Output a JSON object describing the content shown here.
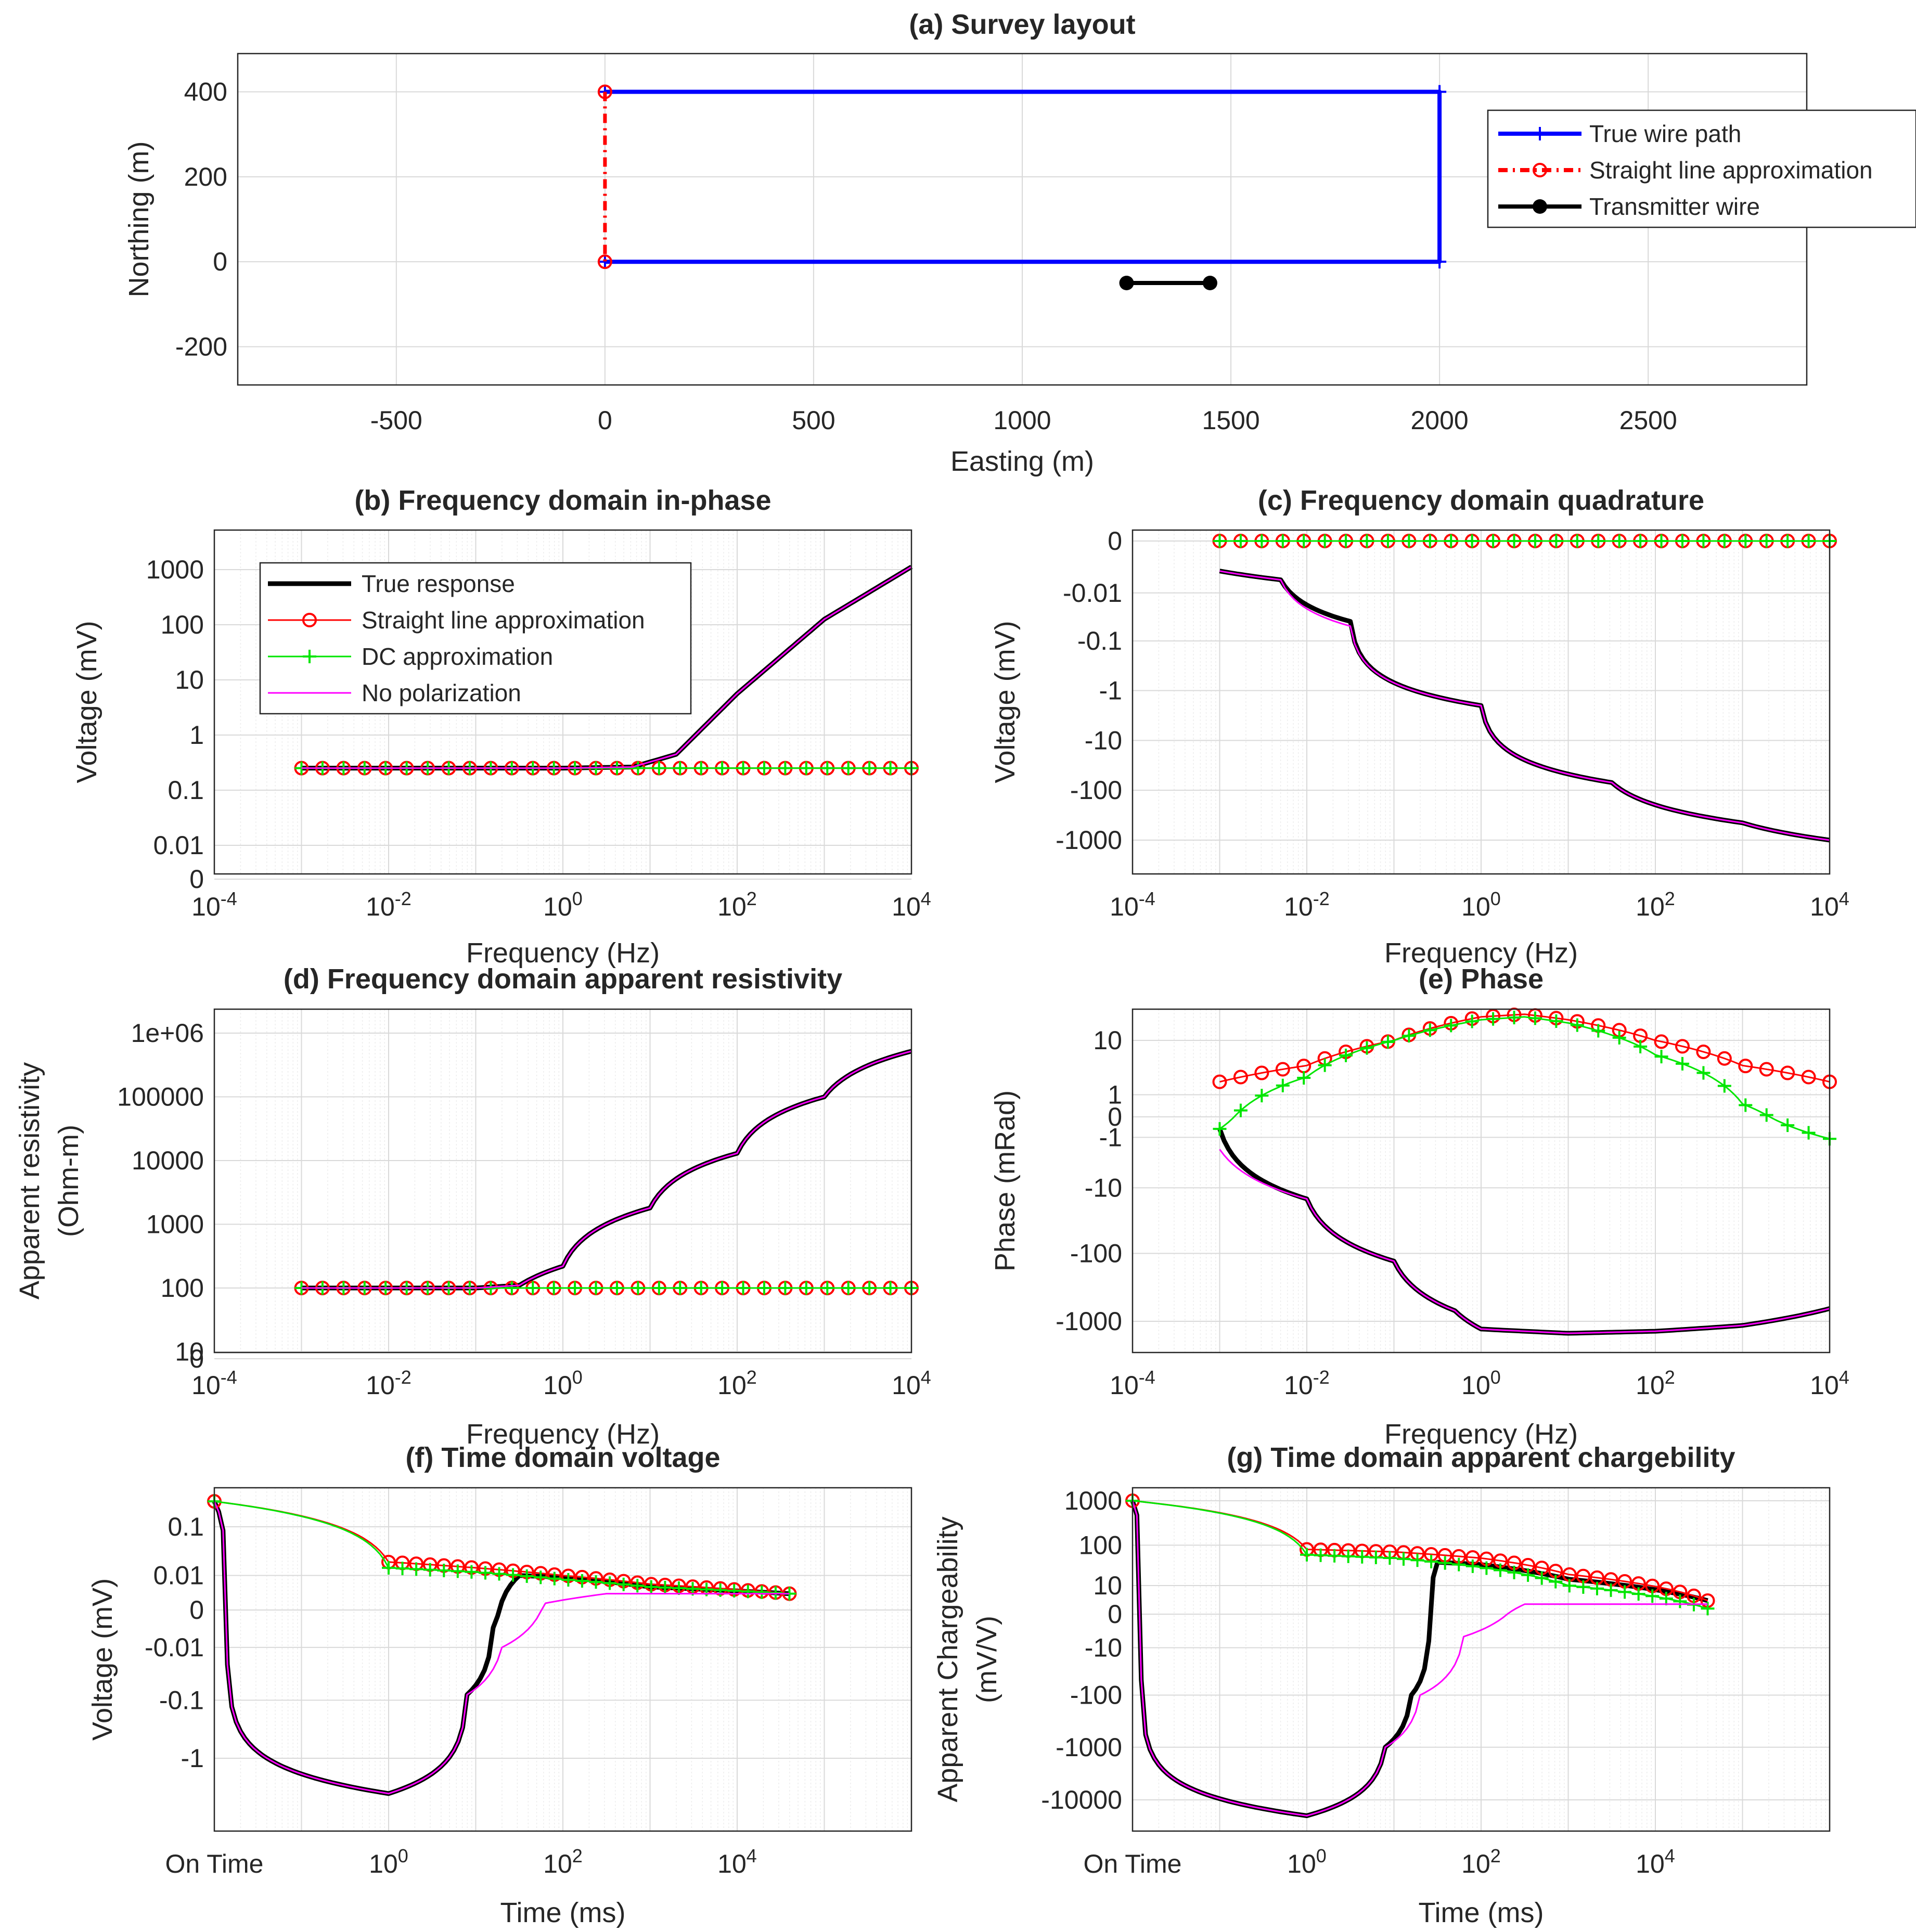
{
  "chart_data": [
    {
      "id": "a",
      "type": "line",
      "title": "(a) Survey layout",
      "xlabel": "Easting (m)",
      "ylabel": "Northing (m)",
      "xlim": [
        -880,
        2880
      ],
      "ylim": [
        -290,
        490
      ],
      "xticks": [
        "-500",
        "0",
        "500",
        "1000",
        "1500",
        "2000",
        "2500"
      ],
      "yticks": [
        "-200",
        "0",
        "200",
        "400"
      ],
      "legend": [
        "True wire path",
        "Straight line approximation",
        "Transmitter wire"
      ],
      "series": [
        {
          "name": "True wire path",
          "color": "#0000ff",
          "x": [
            0,
            2000,
            2000,
            0
          ],
          "y": [
            400,
            400,
            0,
            0
          ]
        },
        {
          "name": "Straight line approximation",
          "color": "#ff0000",
          "x": [
            0,
            0
          ],
          "y": [
            400,
            0
          ]
        },
        {
          "name": "Transmitter wire",
          "color": "#000000",
          "x": [
            1250,
            1450
          ],
          "y": [
            -50,
            -50
          ]
        }
      ]
    },
    {
      "id": "b",
      "type": "line",
      "title": "(b) Frequency domain in-phase",
      "xlabel": "Frequency (Hz)",
      "ylabel": "Voltage (mV)",
      "xscale": "log",
      "xlim": [
        -4,
        4
      ],
      "xticks": [
        "10^-4",
        "10^-2",
        "10^0",
        "10^2",
        "10^4"
      ],
      "yticks": [
        "1000",
        "100",
        "10",
        "1",
        "0.1",
        "0.01",
        "0"
      ],
      "legend": [
        "True response",
        "Straight line approximation",
        "DC approximation",
        "No polarization"
      ],
      "series": [
        {
          "name": "True response",
          "log10_f": [
            -3,
            -1,
            0,
            0.8,
            1.3,
            2,
            3,
            4
          ],
          "log10_v": [
            -0.6,
            -0.6,
            -0.6,
            -0.58,
            -0.35,
            0.75,
            2.1,
            3.05
          ]
        },
        {
          "name": "Straight line approximation",
          "log10_f": [
            -3,
            4
          ],
          "log10_v": [
            -0.6,
            -0.6
          ]
        },
        {
          "name": "DC approximation",
          "log10_f": [
            -3,
            4
          ],
          "log10_v": [
            -0.6,
            -0.6
          ]
        },
        {
          "name": "No polarization",
          "log10_f": [
            -3,
            -1,
            0,
            0.8,
            1.3,
            2,
            3,
            4
          ],
          "log10_v": [
            -0.6,
            -0.6,
            -0.6,
            -0.58,
            -0.35,
            0.75,
            2.1,
            3.05
          ]
        }
      ]
    },
    {
      "id": "c",
      "type": "line",
      "title": "(c) Frequency domain quadrature",
      "xlabel": "Frequency (Hz)",
      "ylabel": "Voltage (mV)",
      "xscale": "log",
      "xlim": [
        -4,
        4
      ],
      "xticks": [
        "10^-4",
        "10^-2",
        "10^0",
        "10^2",
        "10^4"
      ],
      "yticks": [
        "0",
        "-0.01",
        "-0.1",
        "-1",
        "-10",
        "-100",
        "-1000"
      ],
      "series": [
        {
          "name": "True response",
          "log10_f": [
            -3,
            -2.3,
            -1.5,
            0,
            1.5,
            3,
            4
          ],
          "v_mV": [
            -0.003,
            -0.005,
            -0.04,
            -2,
            -70,
            -450,
            -1000
          ]
        },
        {
          "name": "Straight line approximation",
          "log10_f": [
            -3,
            0,
            4
          ],
          "v_mV": [
            0,
            0,
            0
          ]
        },
        {
          "name": "DC approximation",
          "log10_f": [
            -3,
            0,
            4
          ],
          "v_mV": [
            0,
            0,
            0
          ]
        },
        {
          "name": "No polarization",
          "log10_f": [
            -3,
            -2.3,
            -1.5,
            0,
            1.5,
            3,
            4
          ],
          "v_mV": [
            -0.003,
            -0.005,
            -0.05,
            -2,
            -70,
            -450,
            -1000
          ]
        }
      ]
    },
    {
      "id": "d",
      "type": "line",
      "title": "(d) Frequency domain apparent resistivity",
      "xlabel": "Frequency (Hz)",
      "ylabel": "Apparent resistivity (Ohm-m)",
      "xscale": "log",
      "xlim": [
        -4,
        4
      ],
      "xticks": [
        "10^-4",
        "10^-2",
        "10^0",
        "10^2",
        "10^4"
      ],
      "yticks": [
        "1e+06",
        "100000",
        "10000",
        "1000",
        "100",
        "10",
        "0"
      ],
      "series": [
        {
          "name": "True response",
          "log10_f": [
            -3,
            -1,
            -0.5,
            0,
            1,
            2,
            3,
            4
          ],
          "rho": [
            100,
            100,
            110,
            220,
            1800,
            13000,
            100000,
            520000
          ]
        },
        {
          "name": "Straight line approximation",
          "log10_f": [
            -3,
            4
          ],
          "rho": [
            100,
            100
          ]
        },
        {
          "name": "DC approximation",
          "log10_f": [
            -3,
            4
          ],
          "rho": [
            100,
            100
          ]
        },
        {
          "name": "No polarization",
          "log10_f": [
            -3,
            -1,
            -0.5,
            0,
            1,
            2,
            3,
            4
          ],
          "rho": [
            100,
            100,
            110,
            220,
            1800,
            13000,
            100000,
            520000
          ]
        }
      ]
    },
    {
      "id": "e",
      "type": "line",
      "title": "(e) Phase",
      "xlabel": "Frequency (Hz)",
      "ylabel": "Phase (mRad)",
      "xscale": "log",
      "xlim": [
        -4,
        4
      ],
      "xticks": [
        "10^-4",
        "10^-2",
        "10^0",
        "10^2",
        "10^4"
      ],
      "yticks": [
        "10",
        "1",
        "0",
        "-1",
        "-10",
        "-100",
        "-1000"
      ],
      "series": [
        {
          "name": "True response",
          "log10_f": [
            -3,
            -2,
            -1,
            -0.3,
            0,
            1,
            2,
            3,
            4
          ],
          "phase": [
            -0.5,
            -15,
            -130,
            -700,
            -1300,
            -1500,
            -1400,
            -1150,
            -650
          ]
        },
        {
          "name": "Straight line approximation",
          "log10_f": [
            -3,
            -2,
            -1,
            0,
            0.5,
            1,
            2,
            3,
            4
          ],
          "phase": [
            2,
            4,
            10,
            22,
            24,
            20,
            10,
            4,
            2
          ]
        },
        {
          "name": "DC approximation",
          "log10_f": [
            -3,
            -2,
            -1,
            0,
            0.5,
            1,
            2,
            3,
            4
          ],
          "phase": [
            -0.5,
            2.5,
            10,
            20,
            22,
            18,
            6,
            0.5,
            -1.1
          ]
        },
        {
          "name": "No polarization",
          "log10_f": [
            -3,
            -2,
            -1,
            -0.3,
            0,
            1,
            2,
            3,
            4
          ],
          "phase": [
            -2,
            -15,
            -130,
            -700,
            -1300,
            -1500,
            -1400,
            -1150,
            -650
          ]
        }
      ]
    },
    {
      "id": "f",
      "type": "line",
      "title": "(f) Time domain voltage",
      "xlabel": "Time (ms)",
      "ylabel": "Voltage (mV)",
      "xscale": "log",
      "xlim": [
        -2,
        6
      ],
      "xticks": [
        "On Time",
        "10^0",
        "10^2",
        "10^4"
      ],
      "yticks": [
        "0.1",
        "0.01",
        "0",
        "-0.01",
        "-0.1",
        "-1"
      ],
      "series": [
        {
          "name": "True response",
          "log10_t": [
            -2,
            0,
            0.9,
            1.2,
            1.5,
            2,
            3,
            4.6
          ],
          "v_mV": [
            0.3,
            -4,
            -0.08,
            -0.003,
            0.01,
            0.009,
            0.005,
            0.003
          ]
        },
        {
          "name": "Straight line approximation",
          "log10_t": [
            -2,
            0,
            1,
            2,
            3,
            4.6
          ],
          "v_mV": [
            0.3,
            0.02,
            0.015,
            0.01,
            0.006,
            0.003
          ]
        },
        {
          "name": "DC approximation",
          "log10_t": [
            -2,
            0,
            1,
            2,
            3,
            4.6
          ],
          "v_mV": [
            0.3,
            0.015,
            0.012,
            0.008,
            0.005,
            0.003
          ]
        },
        {
          "name": "No polarization",
          "log10_t": [
            -2,
            0,
            0.9,
            1.3,
            1.8,
            2.5,
            4.6
          ],
          "v_mV": [
            0.3,
            -4,
            -0.08,
            -0.01,
            0.001,
            0.003,
            0.003
          ]
        }
      ]
    },
    {
      "id": "g",
      "type": "line",
      "title": "(g) Time domain apparent chargebility",
      "xlabel": "Time (ms)",
      "ylabel": "Apparent Chargeability (mV/V)",
      "xscale": "log",
      "xlim": [
        -2,
        6
      ],
      "xticks": [
        "On Time",
        "10^0",
        "10^2",
        "10^4"
      ],
      "yticks": [
        "1000",
        "100",
        "10",
        "0",
        "-10",
        "-100",
        "-1000",
        "-10000"
      ],
      "series": [
        {
          "name": "True response",
          "log10_t": [
            -2,
            0,
            0.9,
            1.2,
            1.5,
            2,
            3,
            4.6
          ],
          "m": [
            1000,
            -20000,
            -1000,
            -100,
            40,
            35,
            15,
            3
          ]
        },
        {
          "name": "Straight line approximation",
          "log10_t": [
            -2,
            0,
            1,
            2,
            3,
            4.6
          ],
          "m": [
            1000,
            80,
            70,
            50,
            20,
            3
          ]
        },
        {
          "name": "DC approximation",
          "log10_t": [
            -2,
            0,
            1,
            2,
            3,
            4.6
          ],
          "m": [
            1000,
            60,
            50,
            30,
            10,
            1
          ]
        },
        {
          "name": "No polarization",
          "log10_t": [
            -2,
            0,
            0.9,
            1.3,
            1.8,
            2.5,
            4.6
          ],
          "m": [
            1000,
            -20000,
            -1000,
            -100,
            -5,
            2,
            2
          ]
        }
      ]
    }
  ],
  "styles": {
    "true_response": "#000000",
    "straight_line": "#ff0000",
    "dc_approximation": "#00e600",
    "no_polarization": "#ff00ff",
    "wire_path": "#0000ff"
  }
}
